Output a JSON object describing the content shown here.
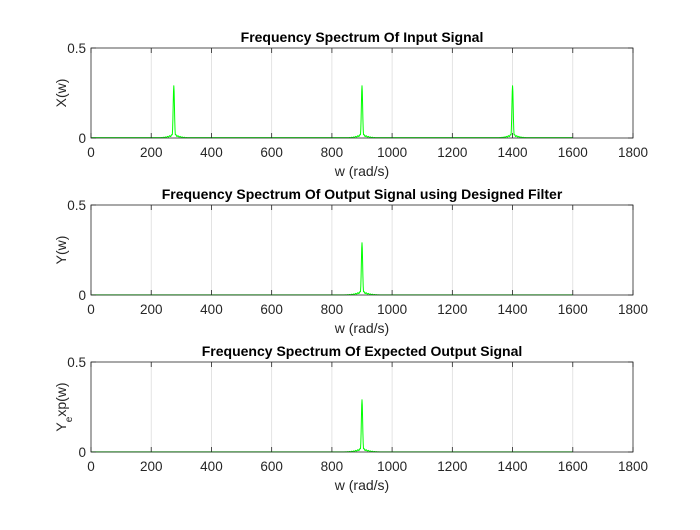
{
  "figure": {
    "background": "#ffffff",
    "line_color": "#00ff00",
    "axis_color": "#262626",
    "grid_color": "#dcdcdc"
  },
  "chart_data": [
    {
      "type": "line",
      "title": "Frequency Spectrum Of Input Signal",
      "xlabel": "w (rad/s)",
      "ylabel": "X(w)",
      "xlim": [
        0,
        1800
      ],
      "ylim": [
        0,
        0.5
      ],
      "xticks": [
        0,
        200,
        400,
        600,
        800,
        1000,
        1200,
        1400,
        1600,
        1800
      ],
      "xtick_labels": [
        "0",
        "200",
        "400",
        "600",
        "800",
        "1000",
        "1200",
        "1400",
        "1600",
        "1800"
      ],
      "yticks": [
        0,
        0.5
      ],
      "ytick_labels": [
        "0",
        "0.5"
      ],
      "grid": "x-major",
      "series": [
        {
          "name": "spectrum",
          "peaks": [
            {
              "w": 275,
              "amplitude": 0.29
            },
            {
              "w": 900,
              "amplitude": 0.29
            },
            {
              "w": 1400,
              "amplitude": 0.29
            }
          ],
          "baseline": 0.002,
          "w_range": [
            0,
            1600
          ]
        }
      ]
    },
    {
      "type": "line",
      "title": "Frequency Spectrum Of Output Signal using Designed Filter",
      "xlabel": "w (rad/s)",
      "ylabel": "Y(w)",
      "xlim": [
        0,
        1800
      ],
      "ylim": [
        0,
        0.5
      ],
      "xticks": [
        0,
        200,
        400,
        600,
        800,
        1000,
        1200,
        1400,
        1600,
        1800
      ],
      "xtick_labels": [
        "0",
        "200",
        "400",
        "600",
        "800",
        "1000",
        "1200",
        "1400",
        "1600",
        "1800"
      ],
      "yticks": [
        0,
        0.5
      ],
      "ytick_labels": [
        "0",
        "0.5"
      ],
      "grid": "x-major",
      "series": [
        {
          "name": "spectrum",
          "peaks": [
            {
              "w": 900,
              "amplitude": 0.29
            }
          ],
          "baseline": 0.001,
          "w_range": [
            0,
            1600
          ]
        }
      ]
    },
    {
      "type": "line",
      "title": "Frequency Spectrum Of Expected Output Signal",
      "xlabel": "w (rad/s)",
      "ylabel_main": "Y",
      "ylabel_sub": "e",
      "ylabel_rest": "xp(w)",
      "xlim": [
        0,
        1800
      ],
      "ylim": [
        0,
        0.5
      ],
      "xticks": [
        0,
        200,
        400,
        600,
        800,
        1000,
        1200,
        1400,
        1600,
        1800
      ],
      "xtick_labels": [
        "0",
        "200",
        "400",
        "600",
        "800",
        "1000",
        "1200",
        "1400",
        "1600",
        "1800"
      ],
      "yticks": [
        0,
        0.5
      ],
      "ytick_labels": [
        "0",
        "0.5"
      ],
      "grid": "x-major",
      "series": [
        {
          "name": "spectrum",
          "peaks": [
            {
              "w": 900,
              "amplitude": 0.29
            }
          ],
          "baseline": 0.001,
          "w_range": [
            0,
            1600
          ]
        }
      ]
    }
  ]
}
